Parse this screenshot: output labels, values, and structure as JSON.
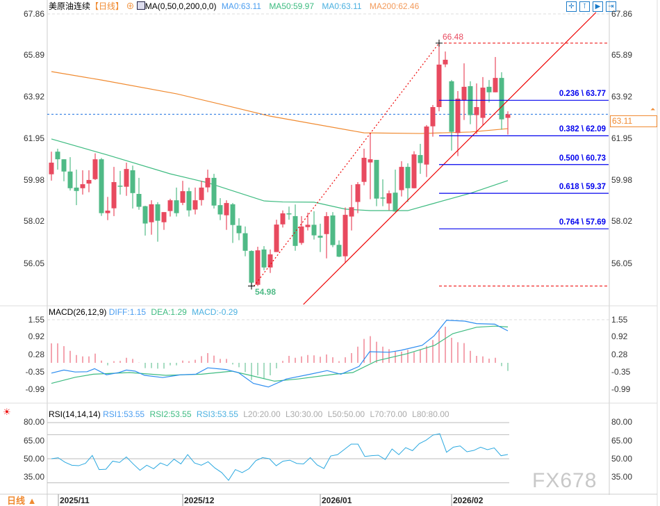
{
  "header": {
    "symbol": "美原油连续",
    "period": "【日线】",
    "indicator": "MA(0,50,0,200,0,0)",
    "ma0": "MA0:63.11",
    "ma50": "MA50:59.97",
    "ma0b": "MA0:63.11",
    "ma200": "MA200:62.46"
  },
  "toolbar": {
    "icons": [
      "crosshair-icon",
      "zoom-in-icon",
      "play-icon",
      "move-right-icon"
    ]
  },
  "price_axis": [
    "67.86",
    "65.89",
    "63.92",
    "61.95",
    "59.98",
    "58.02",
    "56.05"
  ],
  "current_price": "63.11",
  "annotations": {
    "high": "66.48",
    "low": "54.98"
  },
  "fib_levels": [
    {
      "label": "0.236 \\ 63.77",
      "price": 63.77
    },
    {
      "label": "0.382 \\ 62.09",
      "price": 62.09
    },
    {
      "label": "0.500 \\ 60.73",
      "price": 60.73
    },
    {
      "label": "0.618 \\ 59.37",
      "price": 59.37
    },
    {
      "label": "0.764 \\ 57.69",
      "price": 57.69
    }
  ],
  "macd": {
    "title": "MACD(26,12,9)",
    "diff": "DIFF:1.15",
    "dea": "DEA:1.29",
    "macd": "MACD:-0.29",
    "axis": [
      "1.55",
      "0.92",
      "0.28",
      "-0.35",
      "-0.99"
    ]
  },
  "rsi": {
    "title": "RSI(14,14,14)",
    "rsi1": "RSI1:53.55",
    "rsi2": "RSI2:53.55",
    "rsi3": "RSI3:53.55",
    "l20": "L20:20.00",
    "l30": "L30:30.00",
    "l50": "L50:50.00",
    "l70": "L70:70.00",
    "l80": "L80:80.00",
    "axis": [
      "80.00",
      "65.00",
      "50.00",
      "35.00"
    ]
  },
  "dates": [
    "2025/11",
    "2025/12",
    "2026/01",
    "2026/02"
  ],
  "footer": {
    "period_button": "日线 ▲",
    "watermark": "FX678"
  },
  "colors": {
    "up": "#e84a5f",
    "down": "#4fba86",
    "ma50": "#3dbb80",
    "ma200": "#f08a30",
    "fib": "#0000ee",
    "diff": "#2b8cf0",
    "dea": "#3dbb80",
    "rsi": "#2aa8e0"
  },
  "chart_data": {
    "type": "candlestick",
    "title": "美原油连续 日线",
    "ylim": [
      54.0,
      67.86
    ],
    "candles_ohlc": [
      [
        60.27,
        61.34,
        59.97,
        60.82
      ],
      [
        61.34,
        61.48,
        60.49,
        60.98
      ],
      [
        60.98,
        60.98,
        59.94,
        60.4
      ],
      [
        60.4,
        61.08,
        59.5,
        59.61
      ],
      [
        59.64,
        60.49,
        58.81,
        59.48
      ],
      [
        59.61,
        60.46,
        59.31,
        59.8
      ],
      [
        59.83,
        60.46,
        59.42,
        60.0
      ],
      [
        60.04,
        61.26,
        60.0,
        60.98
      ],
      [
        60.98,
        61.04,
        58.3,
        58.43
      ],
      [
        58.43,
        59.2,
        58.1,
        58.55
      ],
      [
        58.66,
        60.62,
        58.29,
        59.9
      ],
      [
        59.73,
        60.43,
        59.31,
        59.69
      ],
      [
        59.68,
        60.82,
        59.25,
        60.52
      ],
      [
        60.46,
        60.68,
        58.65,
        59.38
      ],
      [
        59.34,
        60.1,
        58.59,
        58.73
      ],
      [
        58.76,
        58.78,
        57.37,
        57.94
      ],
      [
        58.0,
        59.04,
        57.41,
        58.85
      ],
      [
        58.85,
        58.95,
        57.08,
        58.07
      ],
      [
        58.0,
        58.48,
        57.64,
        58.48
      ],
      [
        58.53,
        59.11,
        58.27,
        59.04
      ],
      [
        59.04,
        59.64,
        58.27,
        58.43
      ],
      [
        58.92,
        59.96,
        58.81,
        59.47
      ],
      [
        59.47,
        59.64,
        58.27,
        58.56
      ],
      [
        58.6,
        59.64,
        58.37,
        59.04
      ],
      [
        59.05,
        59.96,
        58.79,
        59.64
      ],
      [
        59.65,
        60.49,
        59.42,
        60.1
      ],
      [
        60.1,
        60.29,
        58.65,
        58.79
      ],
      [
        58.81,
        59.14,
        58.1,
        58.37
      ],
      [
        58.33,
        59.04,
        57.64,
        58.91
      ],
      [
        58.85,
        58.91,
        57.02,
        57.87
      ],
      [
        57.84,
        58.19,
        57.15,
        57.48
      ],
      [
        57.48,
        57.8,
        56.39,
        56.65
      ],
      [
        56.64,
        56.67,
        54.98,
        55.14
      ],
      [
        55.04,
        56.84,
        54.98,
        56.67
      ],
      [
        56.71,
        56.87,
        55.73,
        55.86
      ],
      [
        55.86,
        56.71,
        55.6,
        56.48
      ],
      [
        56.59,
        58.12,
        56.59,
        57.89
      ],
      [
        57.9,
        58.56,
        57.75,
        58.42
      ],
      [
        58.42,
        58.74,
        58.12,
        58.38
      ],
      [
        58.29,
        58.84,
        56.65,
        56.88
      ],
      [
        57.02,
        58.29,
        56.93,
        57.8
      ],
      [
        57.77,
        58.45,
        57.61,
        57.88
      ],
      [
        57.88,
        58.52,
        57.18,
        57.38
      ],
      [
        57.36,
        57.93,
        56.59,
        57.27
      ],
      [
        57.44,
        58.48,
        56.29,
        58.29
      ],
      [
        58.32,
        58.48,
        56.82,
        56.92
      ],
      [
        56.93,
        57.14,
        56.35,
        56.37
      ],
      [
        56.39,
        58.7,
        56.07,
        58.35
      ],
      [
        58.27,
        59.77,
        57.61,
        58.71
      ],
      [
        58.96,
        59.9,
        58.43,
        59.8
      ],
      [
        59.91,
        61.48,
        59.75,
        61.05
      ],
      [
        60.83,
        62.21,
        59.09,
        60.98
      ],
      [
        60.95,
        60.95,
        58.76,
        59.12
      ],
      [
        59.17,
        60.03,
        58.76,
        59.13
      ],
      [
        58.89,
        59.5,
        58.56,
        59.37
      ],
      [
        59.4,
        60.49,
        58.49,
        58.51
      ],
      [
        59.52,
        60.89,
        59.22,
        60.62
      ],
      [
        60.62,
        60.79,
        58.96,
        59.61
      ],
      [
        59.61,
        61.36,
        59.6,
        61.21
      ],
      [
        61.18,
        61.71,
        60.29,
        60.8
      ],
      [
        60.73,
        62.6,
        60.14,
        62.53
      ],
      [
        62.54,
        63.55,
        62.05,
        63.45
      ],
      [
        63.45,
        66.48,
        63.25,
        65.46
      ],
      [
        65.47,
        66.08,
        65.34,
        65.69
      ],
      [
        64.67,
        64.73,
        61.39,
        62.28
      ],
      [
        62.22,
        64.21,
        61.13,
        63.85
      ],
      [
        63.78,
        65.52,
        62.84,
        64.41
      ],
      [
        64.44,
        64.67,
        62.64,
        63.07
      ],
      [
        63.07,
        64.57,
        62.18,
        63.45
      ],
      [
        62.94,
        64.87,
        62.61,
        64.37
      ],
      [
        64.41,
        64.73,
        63.67,
        64.15
      ],
      [
        64.15,
        65.82,
        64.15,
        64.83
      ],
      [
        64.83,
        65.1,
        62.38,
        62.87
      ],
      [
        62.94,
        63.25,
        62.15,
        63.11
      ]
    ],
    "ma50": [
      [
        0,
        61.94
      ],
      [
        9,
        61.18
      ],
      [
        19,
        60.29
      ],
      [
        25,
        59.87
      ],
      [
        34,
        59.01
      ],
      [
        37,
        58.96
      ],
      [
        42,
        58.95
      ],
      [
        47,
        58.62
      ],
      [
        51,
        58.55
      ],
      [
        57,
        58.55
      ],
      [
        61,
        58.88
      ],
      [
        67,
        59.37
      ],
      [
        73,
        59.97
      ]
    ],
    "ma200": [
      [
        0,
        65.13
      ],
      [
        8,
        64.73
      ],
      [
        20,
        64.08
      ],
      [
        28,
        63.52
      ],
      [
        35,
        63.02
      ],
      [
        50,
        62.23
      ],
      [
        59,
        62.2
      ],
      [
        67,
        62.27
      ],
      [
        73,
        62.43
      ]
    ],
    "trend_dotted": [
      [
        32.4,
        54.98
      ],
      [
        62,
        66.48
      ]
    ],
    "trend_solid": [
      [
        40.3,
        54.11
      ],
      [
        87.1,
        67.93
      ]
    ],
    "macd_hist": [
      0.7,
      0.7,
      0.6,
      0.43,
      0.28,
      0.23,
      0.23,
      0.33,
      0.08,
      -0.09,
      0.06,
      0.07,
      0.18,
      0.14,
      0.01,
      -0.19,
      -0.19,
      -0.21,
      -0.21,
      -0.09,
      -0.09,
      0.08,
      0.06,
      0.11,
      0.24,
      0.35,
      0.26,
      0.14,
      0.14,
      -0.06,
      -0.16,
      -0.33,
      -0.62,
      -0.45,
      -0.57,
      -0.45,
      -0.2,
      0.07,
      0.25,
      0.18,
      0.23,
      0.28,
      0.27,
      0.22,
      0.3,
      0.2,
      0.06,
      0.2,
      0.35,
      0.58,
      0.86,
      0.96,
      0.76,
      0.58,
      0.49,
      0.4,
      0.4,
      0.47,
      0.38,
      0.47,
      0.61,
      0.82,
      1.16,
      1.3,
      0.9,
      0.74,
      0.71,
      0.43,
      0.25,
      0.23,
      0.15,
      0.18,
      -0.12,
      -0.29
    ],
    "diff": [
      [
        0,
        -0.37
      ],
      [
        2,
        -0.26
      ],
      [
        3.8,
        -0.33
      ],
      [
        5.7,
        -0.32
      ],
      [
        6.9,
        -0.21
      ],
      [
        8.8,
        -0.43
      ],
      [
        10.8,
        -0.35
      ],
      [
        12,
        -0.26
      ],
      [
        13.4,
        -0.3
      ],
      [
        14.9,
        -0.45
      ],
      [
        17.8,
        -0.53
      ],
      [
        20.7,
        -0.43
      ],
      [
        23.1,
        -0.41
      ],
      [
        25,
        -0.18
      ],
      [
        27.9,
        -0.24
      ],
      [
        29.9,
        -0.35
      ],
      [
        32.3,
        -0.74
      ],
      [
        34.7,
        -0.87
      ],
      [
        37.6,
        -0.58
      ],
      [
        41.4,
        -0.41
      ],
      [
        44.1,
        -0.28
      ],
      [
        46.3,
        -0.41
      ],
      [
        49.2,
        -0.13
      ],
      [
        50.9,
        0.4
      ],
      [
        54,
        0.38
      ],
      [
        55.9,
        0.45
      ],
      [
        59.3,
        0.63
      ],
      [
        61.2,
        0.97
      ],
      [
        63.2,
        1.53
      ],
      [
        66.1,
        1.5
      ],
      [
        68,
        1.41
      ],
      [
        70.9,
        1.39
      ],
      [
        73,
        1.15
      ]
    ],
    "dea": [
      [
        0,
        -0.74
      ],
      [
        3.8,
        -0.52
      ],
      [
        6.7,
        -0.41
      ],
      [
        12.5,
        -0.35
      ],
      [
        18.3,
        -0.45
      ],
      [
        24,
        -0.41
      ],
      [
        28.9,
        -0.3
      ],
      [
        31.8,
        -0.45
      ],
      [
        35.7,
        -0.66
      ],
      [
        39.5,
        -0.58
      ],
      [
        45.3,
        -0.41
      ],
      [
        48.2,
        -0.35
      ],
      [
        52,
        0.07
      ],
      [
        56.9,
        0.33
      ],
      [
        61.3,
        0.63
      ],
      [
        64.2,
        1.05
      ],
      [
        68,
        1.28
      ],
      [
        70.9,
        1.32
      ],
      [
        73,
        1.29
      ]
    ],
    "rsi": [
      50,
      50.8,
      47.1,
      44.6,
      44.2,
      46.2,
      52.7,
      41,
      41.3,
      48,
      46.9,
      51.5,
      45.7,
      40.4,
      44.6,
      41.7,
      46.5,
      44.2,
      49.6,
      45.7,
      53.4,
      46.5,
      44.6,
      47.5,
      42.3,
      38.5,
      32.1,
      41,
      38.5,
      41.7,
      48.4,
      50.9,
      50,
      44.2,
      48,
      48.8,
      46.1,
      45.7,
      50.9,
      44.9,
      41.9,
      52.3,
      53.4,
      57.7,
      62.1,
      62.1,
      51.9,
      52.5,
      52.9,
      49.4,
      58.1,
      53.4,
      59.2,
      56.7,
      62.5,
      65.4,
      69.6,
      70.8,
      55.4,
      59.6,
      60.6,
      55.8,
      56.9,
      59.6,
      57.5,
      59,
      52.5,
      53.55
    ]
  }
}
